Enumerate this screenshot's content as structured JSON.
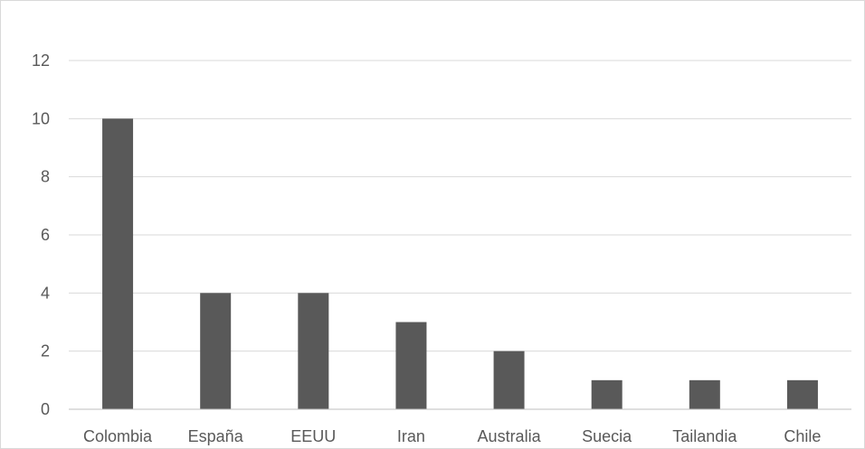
{
  "chart_data": {
    "type": "bar",
    "title": "",
    "xlabel": "",
    "ylabel": "",
    "categories": [
      "Colombia",
      "España",
      "EEUU",
      "Iran",
      "Australia",
      "Suecia",
      "Tailandia",
      "Chile"
    ],
    "values": [
      10,
      4,
      4,
      3,
      2,
      1,
      1,
      1
    ],
    "ylim": [
      0,
      12
    ],
    "yticks": [
      0,
      2,
      4,
      6,
      8,
      10,
      12
    ],
    "grid": true,
    "legend": "none",
    "bar_color": "#595959"
  }
}
